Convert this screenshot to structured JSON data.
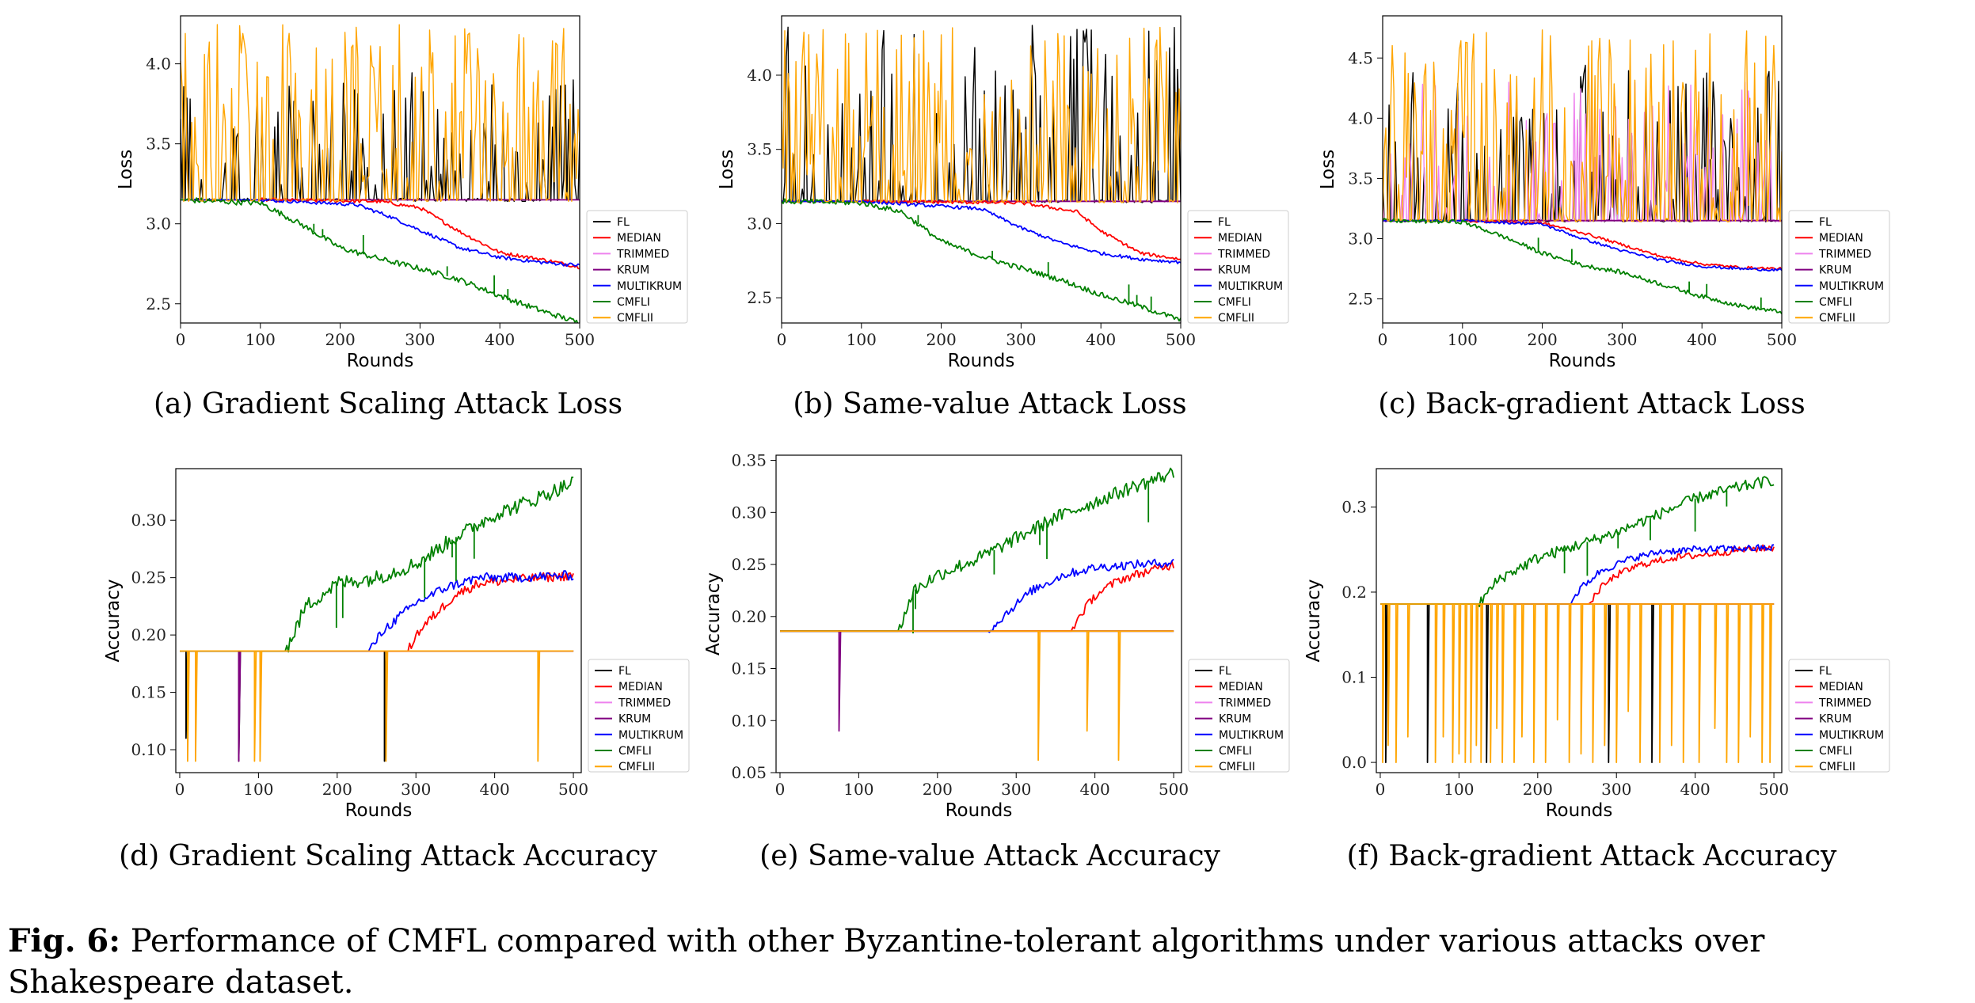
{
  "figure": {
    "label": "Fig. 6:",
    "caption": "Performance of CMFL compared with other Byzantine-tolerant algorithms under various attacks over Shakespeare dataset."
  },
  "colors": {
    "FL": "#000000",
    "MEDIAN": "#ff0000",
    "TRIMMED": "#ee82ee",
    "KRUM": "#800080",
    "MULTIKRUM": "#0000ff",
    "CMFLI": "#008000",
    "CMFLII": "#ffa500"
  },
  "legend": [
    "FL",
    "MEDIAN",
    "TRIMMED",
    "KRUM",
    "MULTIKRUM",
    "CMFLI",
    "CMFLII"
  ],
  "chart_data": [
    {
      "id": "a",
      "type": "line",
      "subcaption": "(a) Gradient Scaling Attack Loss",
      "xlabel": "Rounds",
      "ylabel": "Loss",
      "xlim": [
        0,
        500
      ],
      "ylim": [
        2.38,
        4.3
      ],
      "xticks": [
        0,
        100,
        200,
        300,
        400,
        500
      ],
      "yticks": [
        "2.5",
        "3.0",
        "3.5",
        "4.0"
      ],
      "yticks_values": [
        2.5,
        3.0,
        3.5,
        4.0
      ],
      "legend_position": "right-outside-bottom",
      "series": [
        {
          "name": "FL",
          "baseline": 3.15,
          "spike_top": 3.95
        },
        {
          "name": "MEDIAN",
          "x": [
            0,
            100,
            250,
            300,
            350,
            400,
            450,
            500
          ],
          "y": [
            3.15,
            3.15,
            3.14,
            3.1,
            2.95,
            2.82,
            2.78,
            2.73
          ]
        },
        {
          "name": "TRIMMED",
          "baseline": 3.15
        },
        {
          "name": "KRUM",
          "baseline": 3.15
        },
        {
          "name": "MULTIKRUM",
          "x": [
            0,
            100,
            220,
            260,
            300,
            350,
            400,
            450,
            500
          ],
          "y": [
            3.15,
            3.15,
            3.12,
            3.05,
            2.96,
            2.85,
            2.79,
            2.76,
            2.74
          ]
        },
        {
          "name": "CMFLI",
          "x": [
            0,
            100,
            150,
            200,
            250,
            300,
            350,
            400,
            450,
            500
          ],
          "y": [
            3.15,
            3.13,
            3.0,
            2.85,
            2.78,
            2.72,
            2.65,
            2.55,
            2.46,
            2.38
          ]
        },
        {
          "name": "CMFLII",
          "baseline": 3.15,
          "spike_top": 4.25
        }
      ]
    },
    {
      "id": "b",
      "type": "line",
      "subcaption": "(b) Same-value Attack Loss",
      "xlabel": "Rounds",
      "ylabel": "Loss",
      "xlim": [
        0,
        500
      ],
      "ylim": [
        2.33,
        4.4
      ],
      "xticks": [
        0,
        100,
        200,
        300,
        400,
        500
      ],
      "yticks": [
        "2.5",
        "3.0",
        "3.5",
        "4.0"
      ],
      "yticks_values": [
        2.5,
        3.0,
        3.5,
        4.0
      ],
      "legend_position": "right-outside-bottom",
      "series": [
        {
          "name": "FL",
          "baseline": 3.15,
          "spike_top": 4.35
        },
        {
          "name": "MEDIAN",
          "x": [
            0,
            100,
            300,
            370,
            400,
            450,
            500
          ],
          "y": [
            3.15,
            3.15,
            3.14,
            3.08,
            2.95,
            2.8,
            2.76
          ]
        },
        {
          "name": "TRIMMED",
          "baseline": 3.15
        },
        {
          "name": "KRUM",
          "baseline": 3.15
        },
        {
          "name": "MULTIKRUM",
          "x": [
            0,
            100,
            250,
            300,
            350,
            400,
            450,
            500
          ],
          "y": [
            3.15,
            3.15,
            3.1,
            2.97,
            2.87,
            2.8,
            2.76,
            2.74
          ]
        },
        {
          "name": "CMFLI",
          "x": [
            0,
            100,
            150,
            200,
            250,
            300,
            350,
            400,
            450,
            500
          ],
          "y": [
            3.15,
            3.14,
            3.08,
            2.88,
            2.78,
            2.7,
            2.62,
            2.52,
            2.44,
            2.35
          ]
        },
        {
          "name": "CMFLII",
          "baseline": 3.15,
          "spike_top": 4.35
        }
      ]
    },
    {
      "id": "c",
      "type": "line",
      "subcaption": "(c) Back-gradient Attack Loss",
      "xlabel": "Rounds",
      "ylabel": "Loss",
      "xlim": [
        0,
        500
      ],
      "ylim": [
        2.3,
        4.85
      ],
      "xticks": [
        0,
        100,
        200,
        300,
        400,
        500
      ],
      "yticks": [
        "2.5",
        "3.0",
        "3.5",
        "4.0",
        "4.5"
      ],
      "yticks_values": [
        2.5,
        3.0,
        3.5,
        4.0,
        4.5
      ],
      "legend_position": "right-outside-bottom",
      "series": [
        {
          "name": "FL",
          "baseline": 3.15,
          "spike_top": 4.45
        },
        {
          "name": "MEDIAN",
          "x": [
            0,
            100,
            200,
            250,
            300,
            350,
            400,
            450,
            500
          ],
          "y": [
            3.15,
            3.15,
            3.13,
            3.05,
            2.95,
            2.85,
            2.79,
            2.76,
            2.75
          ]
        },
        {
          "name": "TRIMMED",
          "baseline": 3.15,
          "spike_top": 4.3
        },
        {
          "name": "KRUM",
          "baseline": 3.15
        },
        {
          "name": "MULTIKRUM",
          "x": [
            0,
            100,
            200,
            250,
            300,
            350,
            400,
            450,
            500
          ],
          "y": [
            3.15,
            3.15,
            3.12,
            3.0,
            2.9,
            2.82,
            2.77,
            2.75,
            2.74
          ]
        },
        {
          "name": "CMFLI",
          "x": [
            0,
            100,
            150,
            200,
            250,
            300,
            350,
            400,
            450,
            500
          ],
          "y": [
            3.15,
            3.14,
            3.02,
            2.88,
            2.78,
            2.72,
            2.62,
            2.52,
            2.44,
            2.39
          ]
        },
        {
          "name": "CMFLII",
          "baseline": 3.15,
          "spike_top": 4.75
        }
      ]
    },
    {
      "id": "d",
      "type": "line",
      "subcaption": "(d) Gradient Scaling Attack Accuracy",
      "xlabel": "Rounds",
      "ylabel": "Accuracy",
      "xlim": [
        -5,
        510
      ],
      "ylim": [
        0.08,
        0.345
      ],
      "xticks": [
        0,
        100,
        200,
        300,
        400,
        500
      ],
      "yticks": [
        "0.10",
        "0.15",
        "0.20",
        "0.25",
        "0.30"
      ],
      "yticks_values": [
        0.1,
        0.15,
        0.2,
        0.25,
        0.3
      ],
      "legend_position": "right-outside-bottom",
      "series": [
        {
          "name": "FL",
          "baseline": 0.186,
          "dips": [
            [
              8,
              0.11
            ],
            [
              75,
              0.09
            ],
            [
              260,
              0.09
            ]
          ]
        },
        {
          "name": "MEDIAN",
          "x": [
            0,
            290,
            300,
            320,
            350,
            380,
            420,
            460,
            500
          ],
          "y": [
            0.186,
            0.186,
            0.2,
            0.215,
            0.235,
            0.245,
            0.248,
            0.25,
            0.252
          ]
        },
        {
          "name": "TRIMMED",
          "baseline": 0.186
        },
        {
          "name": "KRUM",
          "baseline": 0.186,
          "dips": [
            [
              75,
              0.09
            ]
          ]
        },
        {
          "name": "MULTIKRUM",
          "x": [
            0,
            240,
            260,
            300,
            340,
            380,
            420,
            460,
            500
          ],
          "y": [
            0.186,
            0.186,
            0.205,
            0.228,
            0.242,
            0.25,
            0.25,
            0.251,
            0.252
          ]
        },
        {
          "name": "CMFLI",
          "x": [
            0,
            135,
            160,
            200,
            250,
            300,
            350,
            400,
            450,
            500
          ],
          "y": [
            0.186,
            0.186,
            0.225,
            0.245,
            0.25,
            0.262,
            0.285,
            0.305,
            0.318,
            0.333
          ]
        },
        {
          "name": "CMFLII",
          "baseline": 0.186,
          "dips": [
            [
              10,
              0.09
            ],
            [
              20,
              0.09
            ],
            [
              95,
              0.09
            ],
            [
              102,
              0.09
            ],
            [
              262,
              0.09
            ],
            [
              455,
              0.09
            ]
          ]
        }
      ]
    },
    {
      "id": "e",
      "type": "line",
      "subcaption": "(e) Same-value Attack Accuracy",
      "xlabel": "Rounds",
      "ylabel": "Accuracy",
      "xlim": [
        -5,
        510
      ],
      "ylim": [
        0.05,
        0.355
      ],
      "xticks": [
        0,
        100,
        200,
        300,
        400,
        500
      ],
      "yticks": [
        "0.05",
        "0.10",
        "0.15",
        "0.20",
        "0.25",
        "0.30",
        "0.35"
      ],
      "yticks_values": [
        0.05,
        0.1,
        0.15,
        0.2,
        0.25,
        0.3,
        0.35
      ],
      "legend_position": "right-outside-bottom",
      "series": [
        {
          "name": "FL",
          "baseline": 0.186
        },
        {
          "name": "MEDIAN",
          "x": [
            0,
            370,
            380,
            400,
            430,
            460,
            500
          ],
          "y": [
            0.186,
            0.186,
            0.2,
            0.22,
            0.235,
            0.242,
            0.25
          ]
        },
        {
          "name": "TRIMMED",
          "baseline": 0.186
        },
        {
          "name": "KRUM",
          "baseline": 0.186,
          "dips": [
            [
              75,
              0.09
            ]
          ]
        },
        {
          "name": "MULTIKRUM",
          "x": [
            0,
            265,
            290,
            320,
            360,
            400,
            450,
            500
          ],
          "y": [
            0.186,
            0.186,
            0.205,
            0.225,
            0.24,
            0.247,
            0.25,
            0.252
          ]
        },
        {
          "name": "CMFLI",
          "x": [
            0,
            150,
            170,
            200,
            250,
            300,
            350,
            400,
            450,
            500
          ],
          "y": [
            0.186,
            0.186,
            0.225,
            0.24,
            0.255,
            0.275,
            0.295,
            0.31,
            0.325,
            0.338
          ]
        },
        {
          "name": "CMFLII",
          "baseline": 0.186,
          "dips": [
            [
              328,
              0.062
            ],
            [
              390,
              0.09
            ],
            [
              430,
              0.062
            ]
          ]
        }
      ]
    },
    {
      "id": "f",
      "type": "line",
      "subcaption": "(f) Back-gradient Attack Accuracy",
      "xlabel": "Rounds",
      "ylabel": "Accuracy",
      "xlim": [
        -5,
        510
      ],
      "ylim": [
        -0.012,
        0.345
      ],
      "xticks": [
        0,
        100,
        200,
        300,
        400,
        500
      ],
      "yticks": [
        "0.0",
        "0.1",
        "0.2",
        "0.3"
      ],
      "yticks_values": [
        0.0,
        0.1,
        0.2,
        0.3
      ],
      "legend_position": "right-outside-bottom",
      "series": [
        {
          "name": "FL",
          "baseline": 0.186,
          "dips": [
            [
              7,
              0.0
            ],
            [
              60,
              0.0
            ],
            [
              135,
              0.0
            ],
            [
              290,
              0.0
            ],
            [
              345,
              0.0
            ]
          ]
        },
        {
          "name": "MEDIAN",
          "x": [
            0,
            265,
            280,
            300,
            330,
            370,
            420,
            460,
            500
          ],
          "y": [
            0.186,
            0.186,
            0.205,
            0.22,
            0.232,
            0.24,
            0.245,
            0.25,
            0.252
          ]
        },
        {
          "name": "TRIMMED",
          "baseline": 0.186
        },
        {
          "name": "KRUM",
          "baseline": 0.186
        },
        {
          "name": "MULTIKRUM",
          "x": [
            0,
            240,
            255,
            280,
            320,
            360,
            400,
            450,
            500
          ],
          "y": [
            0.186,
            0.186,
            0.205,
            0.225,
            0.24,
            0.248,
            0.25,
            0.251,
            0.252
          ]
        },
        {
          "name": "CMFLI",
          "x": [
            0,
            125,
            150,
            200,
            250,
            300,
            350,
            400,
            450,
            500
          ],
          "y": [
            0.186,
            0.186,
            0.215,
            0.24,
            0.255,
            0.27,
            0.29,
            0.31,
            0.322,
            0.332
          ]
        },
        {
          "name": "CMFLII",
          "baseline": 0.186,
          "dips": [
            [
              3,
              0.0
            ],
            [
              10,
              0.02
            ],
            [
              20,
              0.0
            ],
            [
              35,
              0.03
            ],
            [
              70,
              0.0
            ],
            [
              80,
              0.03
            ],
            [
              92,
              0.0
            ],
            [
              100,
              0.01
            ],
            [
              108,
              0.0
            ],
            [
              115,
              0.0
            ],
            [
              122,
              0.02
            ],
            [
              128,
              0.0
            ],
            [
              140,
              0.0
            ],
            [
              148,
              0.04
            ],
            [
              155,
              0.0
            ],
            [
              170,
              0.0
            ],
            [
              180,
              0.03
            ],
            [
              195,
              0.0
            ],
            [
              210,
              0.0
            ],
            [
              225,
              0.05
            ],
            [
              240,
              0.0
            ],
            [
              255,
              0.01
            ],
            [
              270,
              0.0
            ],
            [
              285,
              0.02
            ],
            [
              300,
              0.0
            ],
            [
              315,
              0.06
            ],
            [
              330,
              0.0
            ],
            [
              355,
              0.0
            ],
            [
              370,
              0.02
            ],
            [
              385,
              0.0
            ],
            [
              405,
              0.0
            ],
            [
              425,
              0.04
            ],
            [
              440,
              0.0
            ],
            [
              455,
              0.0
            ],
            [
              470,
              0.03
            ],
            [
              485,
              0.0
            ],
            [
              495,
              0.0
            ]
          ]
        }
      ]
    }
  ]
}
